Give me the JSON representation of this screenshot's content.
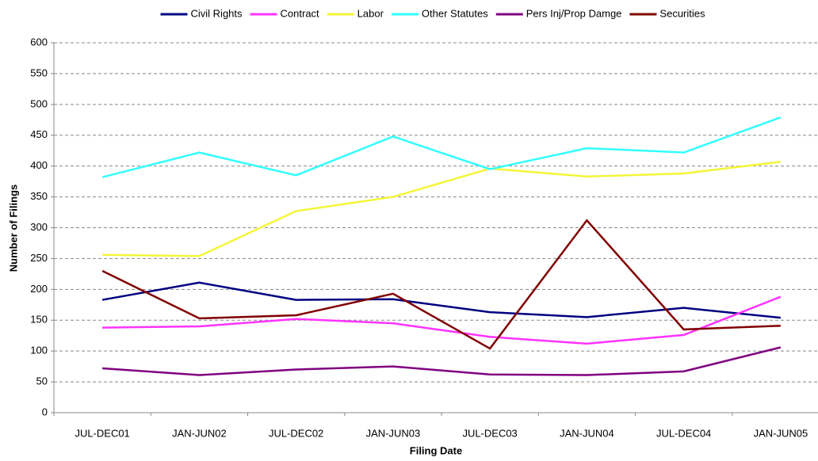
{
  "chart_data": {
    "type": "line",
    "x_label": "Filing Date",
    "y_label": "Number of Filings",
    "categories": [
      "JUL-DEC01",
      "JAN-JUN02",
      "JUL-DEC02",
      "JAN-JUN03",
      "JUL-DEC03",
      "JAN-JUN04",
      "JUL-DEC04",
      "JAN-JUN05"
    ],
    "series": [
      {
        "name": "Civil Rights",
        "color": "#000080",
        "values": [
          183,
          211,
          183,
          184,
          163,
          155,
          170,
          154
        ]
      },
      {
        "name": "Contract",
        "color": "#ff33ff",
        "values": [
          138,
          140,
          152,
          145,
          123,
          112,
          126,
          188
        ]
      },
      {
        "name": "Labor",
        "color": "#f5f53a",
        "values": [
          256,
          254,
          327,
          350,
          396,
          383,
          388,
          407
        ]
      },
      {
        "name": "Other Statutes",
        "color": "#33ffff",
        "values": [
          382,
          422,
          385,
          448,
          395,
          429,
          422,
          479
        ]
      },
      {
        "name": "Pers Inj/Prop Damge",
        "color": "#800080",
        "values": [
          72,
          61,
          70,
          75,
          62,
          61,
          67,
          106
        ]
      },
      {
        "name": "Securities",
        "color": "#800000",
        "values": [
          230,
          153,
          158,
          193,
          104,
          312,
          135,
          141
        ]
      }
    ],
    "ylim": [
      0,
      600
    ],
    "yticks": [
      0,
      50,
      100,
      150,
      200,
      250,
      300,
      350,
      400,
      450,
      500,
      550,
      600
    ],
    "grid": true,
    "legend": "top"
  }
}
